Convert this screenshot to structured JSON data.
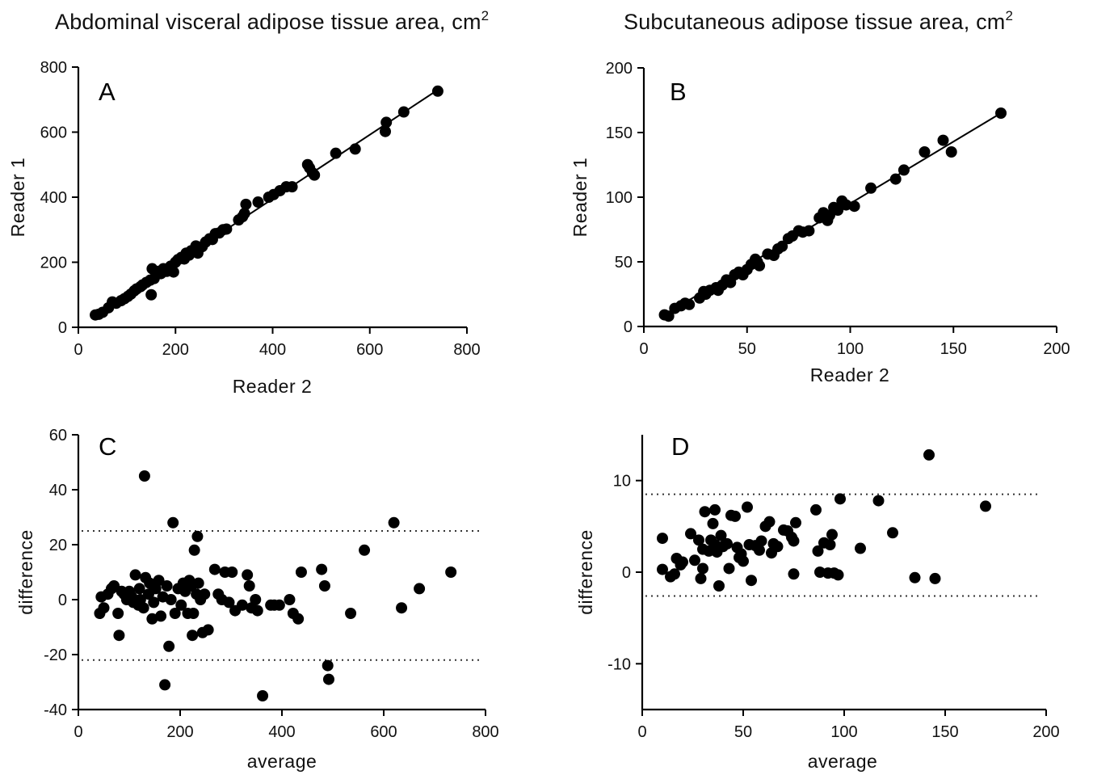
{
  "titles": {
    "left": "Abdominal visceral adipose tissue area, cm",
    "left_sup": "2",
    "right": "Subcutaneous adipose tissue area, cm",
    "right_sup": "2"
  },
  "chart_data": [
    {
      "panel": "A",
      "type": "scatter",
      "xlabel": "Reader 2",
      "ylabel": "Reader 1",
      "xlim": [
        0,
        800
      ],
      "ylim": [
        0,
        800
      ],
      "xticks": [
        0,
        200,
        400,
        600,
        800
      ],
      "yticks": [
        0,
        200,
        400,
        600,
        800
      ],
      "fit_line": [
        [
          35,
          35
        ],
        [
          738,
          728
        ]
      ],
      "points": [
        [
          35,
          38
        ],
        [
          42,
          40
        ],
        [
          50,
          46
        ],
        [
          62,
          60
        ],
        [
          70,
          78
        ],
        [
          78,
          74
        ],
        [
          88,
          82
        ],
        [
          95,
          88
        ],
        [
          102,
          95
        ],
        [
          108,
          102
        ],
        [
          115,
          112
        ],
        [
          120,
          118
        ],
        [
          128,
          125
        ],
        [
          132,
          130
        ],
        [
          140,
          138
        ],
        [
          148,
          145
        ],
        [
          150,
          100
        ],
        [
          152,
          180
        ],
        [
          156,
          150
        ],
        [
          160,
          162
        ],
        [
          165,
          172
        ],
        [
          170,
          165
        ],
        [
          175,
          180
        ],
        [
          182,
          172
        ],
        [
          190,
          188
        ],
        [
          196,
          170
        ],
        [
          200,
          200
        ],
        [
          205,
          208
        ],
        [
          212,
          215
        ],
        [
          218,
          210
        ],
        [
          222,
          228
        ],
        [
          228,
          222
        ],
        [
          232,
          235
        ],
        [
          238,
          238
        ],
        [
          242,
          250
        ],
        [
          246,
          228
        ],
        [
          250,
          245
        ],
        [
          255,
          248
        ],
        [
          262,
          262
        ],
        [
          270,
          272
        ],
        [
          276,
          270
        ],
        [
          282,
          288
        ],
        [
          290,
          290
        ],
        [
          298,
          300
        ],
        [
          305,
          302
        ],
        [
          330,
          330
        ],
        [
          338,
          340
        ],
        [
          342,
          350
        ],
        [
          345,
          378
        ],
        [
          370,
          385
        ],
        [
          392,
          400
        ],
        [
          402,
          408
        ],
        [
          415,
          420
        ],
        [
          428,
          432
        ],
        [
          440,
          432
        ],
        [
          472,
          500
        ],
        [
          476,
          490
        ],
        [
          482,
          475
        ],
        [
          486,
          468
        ],
        [
          530,
          535
        ],
        [
          570,
          548
        ],
        [
          632,
          602
        ],
        [
          634,
          630
        ],
        [
          670,
          662
        ],
        [
          740,
          726
        ]
      ]
    },
    {
      "panel": "B",
      "type": "scatter",
      "xlabel": "Reader 2",
      "ylabel": "Reader 1",
      "xlim": [
        0,
        200
      ],
      "ylim": [
        0,
        200
      ],
      "xticks": [
        0,
        50,
        100,
        150,
        200
      ],
      "yticks": [
        0,
        50,
        100,
        150,
        200
      ],
      "fit_line": [
        [
          10,
          9
        ],
        [
          173,
          165
        ]
      ],
      "points": [
        [
          10,
          9
        ],
        [
          12,
          8
        ],
        [
          15,
          14
        ],
        [
          18,
          16
        ],
        [
          20,
          18
        ],
        [
          22,
          17
        ],
        [
          27,
          22
        ],
        [
          29,
          27
        ],
        [
          30,
          25
        ],
        [
          32,
          28
        ],
        [
          35,
          30
        ],
        [
          36,
          28
        ],
        [
          38,
          32
        ],
        [
          40,
          36
        ],
        [
          42,
          34
        ],
        [
          44,
          40
        ],
        [
          46,
          42
        ],
        [
          48,
          40
        ],
        [
          50,
          44
        ],
        [
          52,
          48
        ],
        [
          54,
          52
        ],
        [
          55,
          50
        ],
        [
          56,
          47
        ],
        [
          60,
          56
        ],
        [
          63,
          55
        ],
        [
          65,
          60
        ],
        [
          67,
          62
        ],
        [
          70,
          68
        ],
        [
          72,
          70
        ],
        [
          75,
          74
        ],
        [
          77,
          73
        ],
        [
          80,
          74
        ],
        [
          85,
          84
        ],
        [
          87,
          88
        ],
        [
          89,
          82
        ],
        [
          90,
          86
        ],
        [
          92,
          92
        ],
        [
          94,
          90
        ],
        [
          96,
          97
        ],
        [
          98,
          94
        ],
        [
          102,
          93
        ],
        [
          110,
          107
        ],
        [
          122,
          114
        ],
        [
          126,
          121
        ],
        [
          136,
          135
        ],
        [
          145,
          144
        ],
        [
          149,
          135
        ],
        [
          173,
          165
        ]
      ]
    },
    {
      "panel": "C",
      "type": "scatter",
      "xlabel": "average",
      "ylabel": "difference",
      "xlim": [
        0,
        800
      ],
      "ylim": [
        -40,
        60
      ],
      "xticks": [
        0,
        200,
        400,
        600,
        800
      ],
      "yticks": [
        -40,
        -20,
        0,
        20,
        40,
        60
      ],
      "reference_lines": [
        25,
        -22
      ],
      "points": [
        [
          42,
          -5
        ],
        [
          45,
          1
        ],
        [
          50,
          -3
        ],
        [
          58,
          2
        ],
        [
          65,
          4
        ],
        [
          70,
          5
        ],
        [
          78,
          -5
        ],
        [
          80,
          -13
        ],
        [
          85,
          3
        ],
        [
          90,
          2
        ],
        [
          95,
          0
        ],
        [
          100,
          3
        ],
        [
          105,
          1
        ],
        [
          108,
          -1
        ],
        [
          112,
          9
        ],
        [
          118,
          -2
        ],
        [
          120,
          4
        ],
        [
          122,
          0
        ],
        [
          128,
          -3
        ],
        [
          130,
          45
        ],
        [
          132,
          8
        ],
        [
          138,
          2
        ],
        [
          140,
          6
        ],
        [
          145,
          -7
        ],
        [
          148,
          -1
        ],
        [
          152,
          4
        ],
        [
          158,
          7
        ],
        [
          162,
          -6
        ],
        [
          166,
          1
        ],
        [
          170,
          -31
        ],
        [
          174,
          5
        ],
        [
          178,
          -17
        ],
        [
          182,
          0
        ],
        [
          186,
          28
        ],
        [
          190,
          -5
        ],
        [
          196,
          4
        ],
        [
          202,
          -2
        ],
        [
          206,
          6
        ],
        [
          210,
          3
        ],
        [
          215,
          -5
        ],
        [
          218,
          7
        ],
        [
          222,
          5
        ],
        [
          224,
          -13
        ],
        [
          226,
          -5
        ],
        [
          228,
          18
        ],
        [
          232,
          2
        ],
        [
          234,
          23
        ],
        [
          236,
          6
        ],
        [
          240,
          0
        ],
        [
          244,
          -12
        ],
        [
          248,
          2
        ],
        [
          255,
          -11
        ],
        [
          268,
          11
        ],
        [
          275,
          2
        ],
        [
          282,
          0
        ],
        [
          288,
          10
        ],
        [
          296,
          -1
        ],
        [
          302,
          10
        ],
        [
          308,
          -4
        ],
        [
          322,
          -2
        ],
        [
          332,
          9
        ],
        [
          336,
          5
        ],
        [
          340,
          -3
        ],
        [
          348,
          0
        ],
        [
          352,
          -4
        ],
        [
          362,
          -35
        ],
        [
          378,
          -2
        ],
        [
          385,
          -2
        ],
        [
          395,
          -2
        ],
        [
          415,
          0
        ],
        [
          422,
          -5
        ],
        [
          432,
          -7
        ],
        [
          438,
          10
        ],
        [
          478,
          11
        ],
        [
          484,
          5
        ],
        [
          490,
          -24
        ],
        [
          492,
          -29
        ],
        [
          535,
          -5
        ],
        [
          562,
          18
        ],
        [
          620,
          28
        ],
        [
          635,
          -3
        ],
        [
          670,
          4
        ],
        [
          732,
          10
        ]
      ]
    },
    {
      "panel": "D",
      "type": "scatter",
      "xlabel": "average",
      "ylabel": "difference",
      "xlim": [
        0,
        200
      ],
      "ylim": [
        -15,
        15
      ],
      "xticks": [
        0,
        50,
        100,
        150,
        200
      ],
      "yticks": [
        -10,
        0,
        10
      ],
      "reference_lines": [
        8.5,
        -2.6
      ],
      "points": [
        [
          10,
          3.7
        ],
        [
          10,
          0.3
        ],
        [
          14,
          -0.5
        ],
        [
          16,
          -0.2
        ],
        [
          17,
          1.5
        ],
        [
          19,
          0.8
        ],
        [
          20,
          1.1
        ],
        [
          24,
          4.2
        ],
        [
          26,
          1.3
        ],
        [
          28,
          3.5
        ],
        [
          29,
          -0.7
        ],
        [
          30,
          0.4
        ],
        [
          30,
          2.5
        ],
        [
          31,
          6.6
        ],
        [
          33,
          2.3
        ],
        [
          34,
          3.5
        ],
        [
          35,
          5.3
        ],
        [
          36,
          3.0
        ],
        [
          36,
          6.8
        ],
        [
          37,
          2.2
        ],
        [
          38,
          -1.5
        ],
        [
          39,
          4.0
        ],
        [
          40,
          2.8
        ],
        [
          42,
          3.1
        ],
        [
          43,
          0.4
        ],
        [
          44,
          6.2
        ],
        [
          46,
          6.1
        ],
        [
          47,
          2.7
        ],
        [
          48,
          1.6
        ],
        [
          49,
          2.0
        ],
        [
          50,
          1.2
        ],
        [
          52,
          7.1
        ],
        [
          53,
          3.0
        ],
        [
          54,
          -0.9
        ],
        [
          56,
          2.9
        ],
        [
          58,
          2.4
        ],
        [
          59,
          3.4
        ],
        [
          61,
          5.0
        ],
        [
          63,
          5.5
        ],
        [
          64,
          2.1
        ],
        [
          65,
          3.1
        ],
        [
          67,
          2.8
        ],
        [
          70,
          4.6
        ],
        [
          72,
          4.5
        ],
        [
          74,
          3.8
        ],
        [
          75,
          -0.2
        ],
        [
          75,
          3.4
        ],
        [
          76,
          5.4
        ],
        [
          86,
          6.8
        ],
        [
          87,
          2.3
        ],
        [
          88,
          0.0
        ],
        [
          90,
          3.2
        ],
        [
          92,
          -0.1
        ],
        [
          93,
          3.0
        ],
        [
          94,
          4.1
        ],
        [
          95,
          -0.1
        ],
        [
          97,
          -0.3
        ],
        [
          98,
          8.0
        ],
        [
          108,
          2.6
        ],
        [
          117,
          7.8
        ],
        [
          124,
          4.3
        ],
        [
          135,
          -0.6
        ],
        [
          142,
          12.8
        ],
        [
          145,
          -0.7
        ],
        [
          170,
          7.2
        ]
      ]
    }
  ]
}
